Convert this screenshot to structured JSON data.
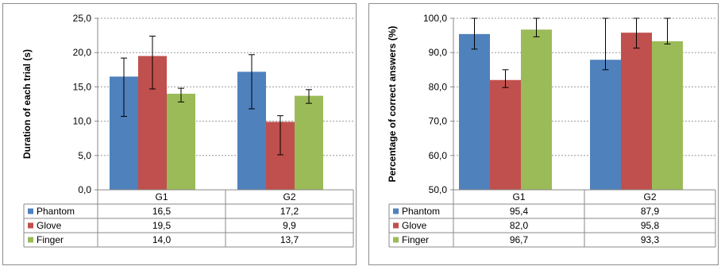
{
  "chart_data": [
    {
      "type": "bar",
      "ylabel": "Duration of each trial (s)",
      "ylim": [
        0,
        25
      ],
      "yticks": [
        "0,0",
        "5,0",
        "10,0",
        "15,0",
        "20,0",
        "25,0"
      ],
      "categories": [
        "G1",
        "G2"
      ],
      "grid": true,
      "legend": "data-table",
      "series": [
        {
          "name": "Phantom",
          "color": "#4f81bd",
          "values": [
            16.5,
            17.2
          ],
          "labels": [
            "16,5",
            "17,2"
          ],
          "err_low": [
            10.7,
            11.8
          ],
          "err_high": [
            19.2,
            19.7
          ]
        },
        {
          "name": "Glove",
          "color": "#c0504d",
          "values": [
            19.5,
            9.9
          ],
          "labels": [
            "19,5",
            "9,9"
          ],
          "err_low": [
            14.7,
            5.1
          ],
          "err_high": [
            22.4,
            10.8
          ]
        },
        {
          "name": "Finger",
          "color": "#9bbb59",
          "values": [
            14.0,
            13.7
          ],
          "labels": [
            "14,0",
            "13,7"
          ],
          "err_low": [
            12.8,
            12.6
          ],
          "err_high": [
            14.8,
            14.6
          ]
        }
      ]
    },
    {
      "type": "bar",
      "ylabel": "Percentage of correct answers (%)",
      "ylim": [
        50,
        100
      ],
      "yticks": [
        "50,0",
        "60,0",
        "70,0",
        "80,0",
        "90,0",
        "100,0"
      ],
      "categories": [
        "G1",
        "G2"
      ],
      "grid": true,
      "legend": "data-table",
      "series": [
        {
          "name": "Phantom",
          "color": "#4f81bd",
          "values": [
            95.4,
            87.9
          ],
          "labels": [
            "95,4",
            "87,9"
          ],
          "err_low": [
            91.0,
            85.0
          ],
          "err_high": [
            100,
            100
          ]
        },
        {
          "name": "Glove",
          "color": "#c0504d",
          "values": [
            82.0,
            95.8
          ],
          "labels": [
            "82,0",
            "95,8"
          ],
          "err_low": [
            79.8,
            91.3
          ],
          "err_high": [
            85.0,
            100
          ]
        },
        {
          "name": "Finger",
          "color": "#9bbb59",
          "values": [
            96.7,
            93.3
          ],
          "labels": [
            "96,7",
            "93,3"
          ],
          "err_low": [
            94.6,
            92.5
          ],
          "err_high": [
            100,
            100
          ]
        }
      ]
    }
  ]
}
